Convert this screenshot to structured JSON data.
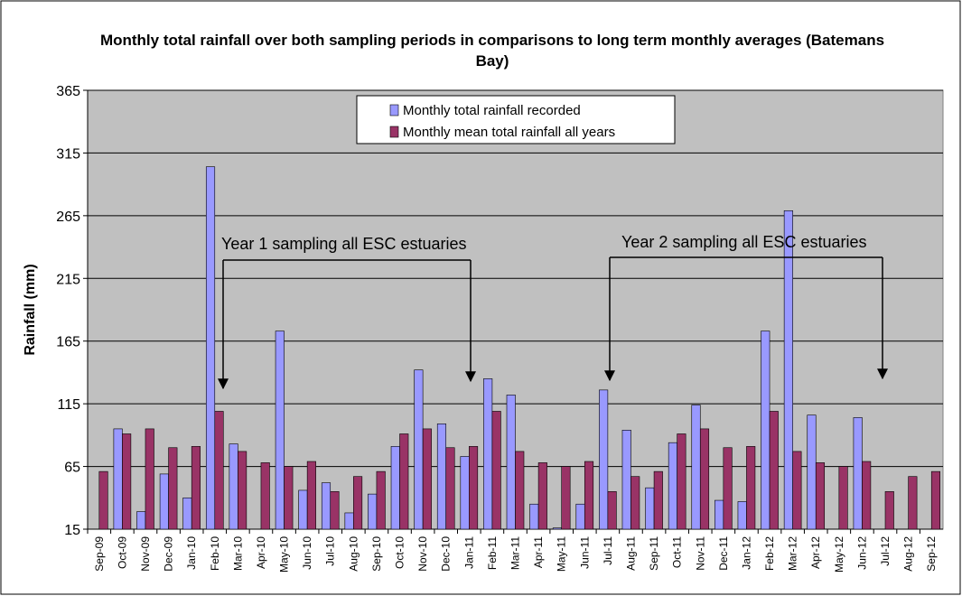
{
  "chart_data": {
    "type": "bar",
    "title": "Monthly total rainfall over both sampling periods in comparisons to long term monthly averages (Batemans Bay)",
    "y_label": "Rainfall (mm)",
    "annotations": [
      "Year 1 sampling all ESC estuaries",
      "Year 2 sampling all    ESC estuaries"
    ],
    "categories": [
      "Sep-09",
      "Oct-09",
      "Nov-09",
      "Dec-09",
      "Jan-10",
      "Feb-10",
      "Mar-10",
      "Apr-10",
      "May-10",
      "Jun-10",
      "Jul-10",
      "Aug-10",
      "Sep-10",
      "Oct-10",
      "Nov-10",
      "Dec-10",
      "Jan-11",
      "Feb-11",
      "Mar-11",
      "Apr-11",
      "May-11",
      "Jun-11",
      "Jul-11",
      "Aug-11",
      "Sep-11",
      "Oct-11",
      "Nov-11",
      "Dec-11",
      "Jan-12",
      "Feb-12",
      "Mar-12",
      "Apr-12",
      "May-12",
      "Jun-12",
      "Jul-12",
      "Aug-12",
      "Sep-12"
    ],
    "series": [
      {
        "name": "Monthly total rainfall recorded",
        "color": "#9999ff",
        "values": [
          null,
          95,
          29,
          59,
          40,
          304,
          83,
          null,
          173,
          46,
          52,
          28,
          43,
          81,
          142,
          99,
          73,
          135,
          122,
          35,
          16,
          35,
          126,
          94,
          48,
          84,
          114,
          38,
          37,
          173,
          269,
          106,
          null,
          104,
          null,
          null,
          null
        ]
      },
      {
        "name": "Monthly mean total rainfall all years",
        "color": "#993366",
        "values": [
          61,
          91,
          95,
          80,
          81,
          109,
          77,
          68,
          65,
          69,
          45,
          57,
          61,
          91,
          95,
          80,
          81,
          109,
          77,
          68,
          65,
          69,
          45,
          57,
          61,
          91,
          95,
          80,
          81,
          109,
          77,
          68,
          65,
          69,
          45,
          57,
          61
        ]
      }
    ],
    "ylim": [
      15,
      365
    ],
    "yticks": [
      15,
      65,
      115,
      165,
      215,
      265,
      315,
      365
    ],
    "grid": true,
    "background": "#c0c0c0"
  }
}
